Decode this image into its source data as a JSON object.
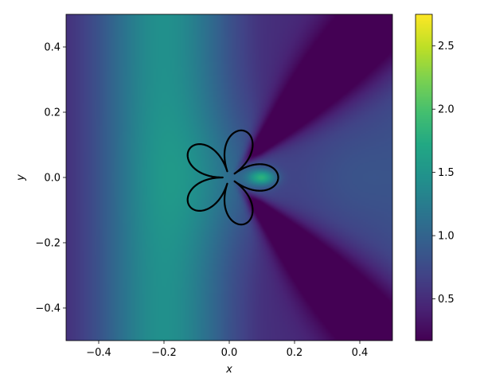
{
  "chart_data": {
    "type": "heatmap",
    "title": "",
    "xlabel": "x",
    "ylabel": "y",
    "xlim": [
      -0.5,
      0.5
    ],
    "ylim": [
      -0.5,
      0.5
    ],
    "x_ticks": [
      -0.4,
      -0.2,
      0.0,
      0.2,
      0.4
    ],
    "x_tick_labels": [
      "−0.4",
      "−0.2",
      "0.0",
      "0.2",
      "0.4"
    ],
    "y_ticks": [
      -0.4,
      -0.2,
      0.0,
      0.2,
      0.4
    ],
    "y_tick_labels": [
      "−0.4",
      "−0.2",
      "0.0",
      "0.2",
      "0.4"
    ],
    "colormap": "viridis",
    "colorbar": {
      "range": [
        0.17,
        2.75
      ],
      "ticks": [
        0.5,
        1.0,
        1.5,
        2.0,
        2.5
      ],
      "tick_labels": [
        "0.5",
        "1.0",
        "1.5",
        "2.0",
        "2.5"
      ]
    },
    "grid": false,
    "overlay_curve": {
      "description": "five-petal closed contour (black)",
      "center": [
        0.0,
        0.0
      ],
      "petals": 5,
      "petal_tip_angles_deg": [
        0,
        72,
        144,
        216,
        288
      ],
      "tip_radius": 0.15,
      "notch_radius": 0.02
    }
  }
}
